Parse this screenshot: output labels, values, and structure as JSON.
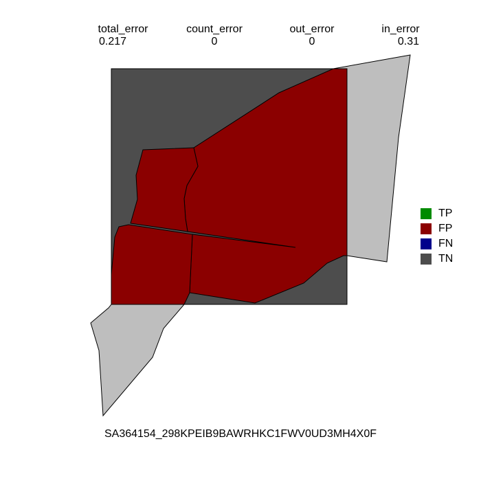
{
  "metrics": [
    {
      "label": "total_error",
      "value": "0.217"
    },
    {
      "label": "count_error",
      "value": "0"
    },
    {
      "label": "out_error",
      "value": "0"
    },
    {
      "label": "in_error",
      "value": "0.31"
    }
  ],
  "legend": [
    {
      "label": "TP",
      "color": "#008b00"
    },
    {
      "label": "FP",
      "color": "#8b0000"
    },
    {
      "label": "FN",
      "color": "#00008b"
    },
    {
      "label": "TN",
      "color": "#4d4d4d"
    }
  ],
  "colors": {
    "tn_background": "#4d4d4d",
    "fp": "#8b0000",
    "outside": "#bebebe"
  },
  "caption": "SA364154_298KPEIB9BAWRHKC1FWV0UD3MH4X0F"
}
